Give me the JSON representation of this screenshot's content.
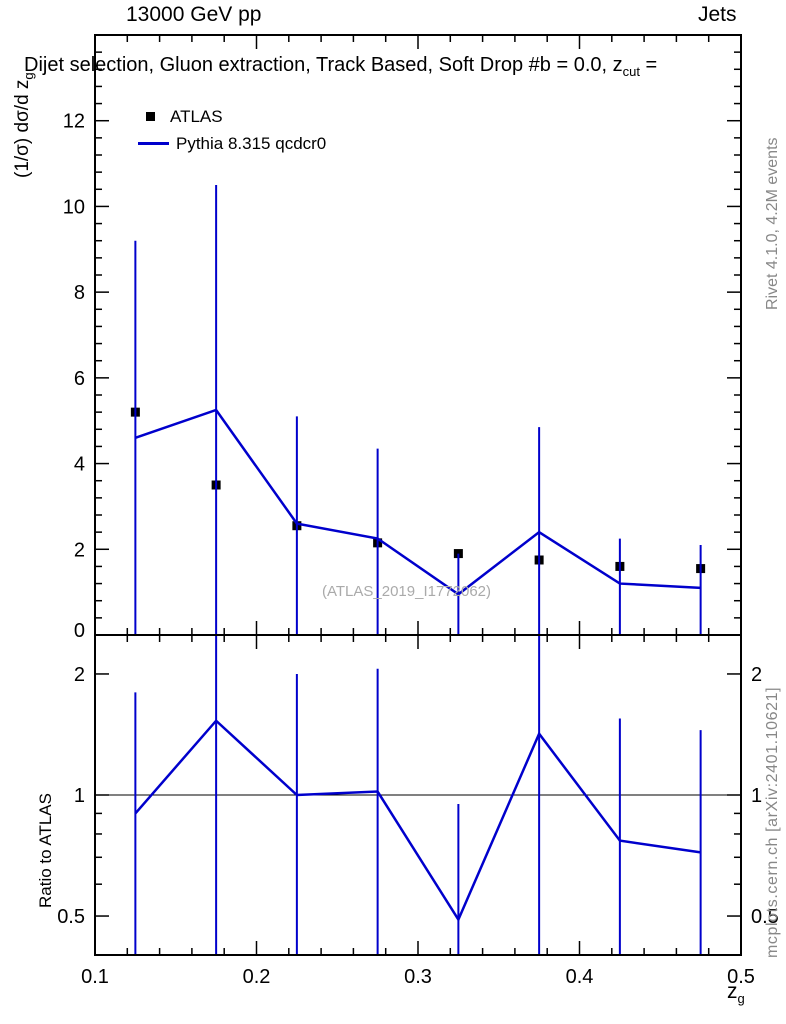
{
  "watermark": "(ATLAS_2019_I1772062)",
  "side_notes": {
    "top_right": "Rivet 4.1.0,  4.2M events",
    "bottom_right": "mcplots.cern.ch [arXiv:2401.10621]"
  },
  "chart_data": [
    {
      "type": "line",
      "panel": "main",
      "title_left": "13000 GeV pp",
      "title_right": "Jets",
      "subtitle_a": "Dijet selection, Gluon extraction, Track Based, Soft Drop #b = 0.0, z",
      "subtitle_sub": "cut",
      "subtitle_b": " =",
      "ylabel": "(1/σ) dσ/d z",
      "ylabel_sub": "g",
      "xlim": [
        0.1,
        0.5
      ],
      "ylim": [
        0,
        14
      ],
      "xticks": [
        0.1,
        0.2,
        0.3,
        0.4,
        0.5
      ],
      "yticks": [
        0,
        2,
        4,
        6,
        8,
        10,
        12
      ],
      "grid": false,
      "legend_position": "top-left",
      "x": [
        0.125,
        0.175,
        0.225,
        0.275,
        0.325,
        0.375,
        0.425,
        0.475
      ],
      "series": [
        {
          "name": "ATLAS",
          "style": "marker-square",
          "color": "#000000",
          "values": [
            5.2,
            3.5,
            2.55,
            2.15,
            1.9,
            1.75,
            1.6,
            1.55
          ]
        },
        {
          "name": "Pythia 8.315 qcdcr0",
          "style": "line-errorbar",
          "color": "#0000cc",
          "values": [
            4.6,
            5.25,
            2.6,
            2.25,
            0.95,
            2.4,
            1.2,
            1.1
          ],
          "err_hi": [
            9.2,
            10.5,
            5.1,
            4.35,
            1.9,
            4.85,
            2.25,
            2.1
          ],
          "err_lo": [
            0,
            0,
            0,
            0,
            0,
            0,
            0,
            0
          ]
        }
      ]
    },
    {
      "type": "line",
      "panel": "ratio",
      "ylabel": "Ratio to ATLAS",
      "xlabel": "z",
      "xlabel_sub": "g",
      "yscale": "log",
      "xlim": [
        0.1,
        0.5
      ],
      "ylim": [
        0.4,
        2.5
      ],
      "xticks": [
        0.1,
        0.2,
        0.3,
        0.4,
        0.5
      ],
      "yticks": [
        0.5,
        1,
        2
      ],
      "refline": 1,
      "x": [
        0.125,
        0.175,
        0.225,
        0.275,
        0.325,
        0.375,
        0.425,
        0.475
      ],
      "series": [
        {
          "name": "Pythia 8.315 qcdcr0 / ATLAS",
          "style": "line-errorbar",
          "color": "#0000cc",
          "values": [
            0.9,
            1.53,
            1.0,
            1.02,
            0.49,
            1.42,
            0.77,
            0.72
          ],
          "err_hi": [
            1.8,
            2.6,
            2.0,
            2.06,
            0.95,
            2.6,
            1.55,
            1.45
          ],
          "err_lo": [
            0.3,
            0.3,
            0.3,
            0.3,
            0.3,
            0.3,
            0.3,
            0.3
          ]
        }
      ]
    }
  ]
}
